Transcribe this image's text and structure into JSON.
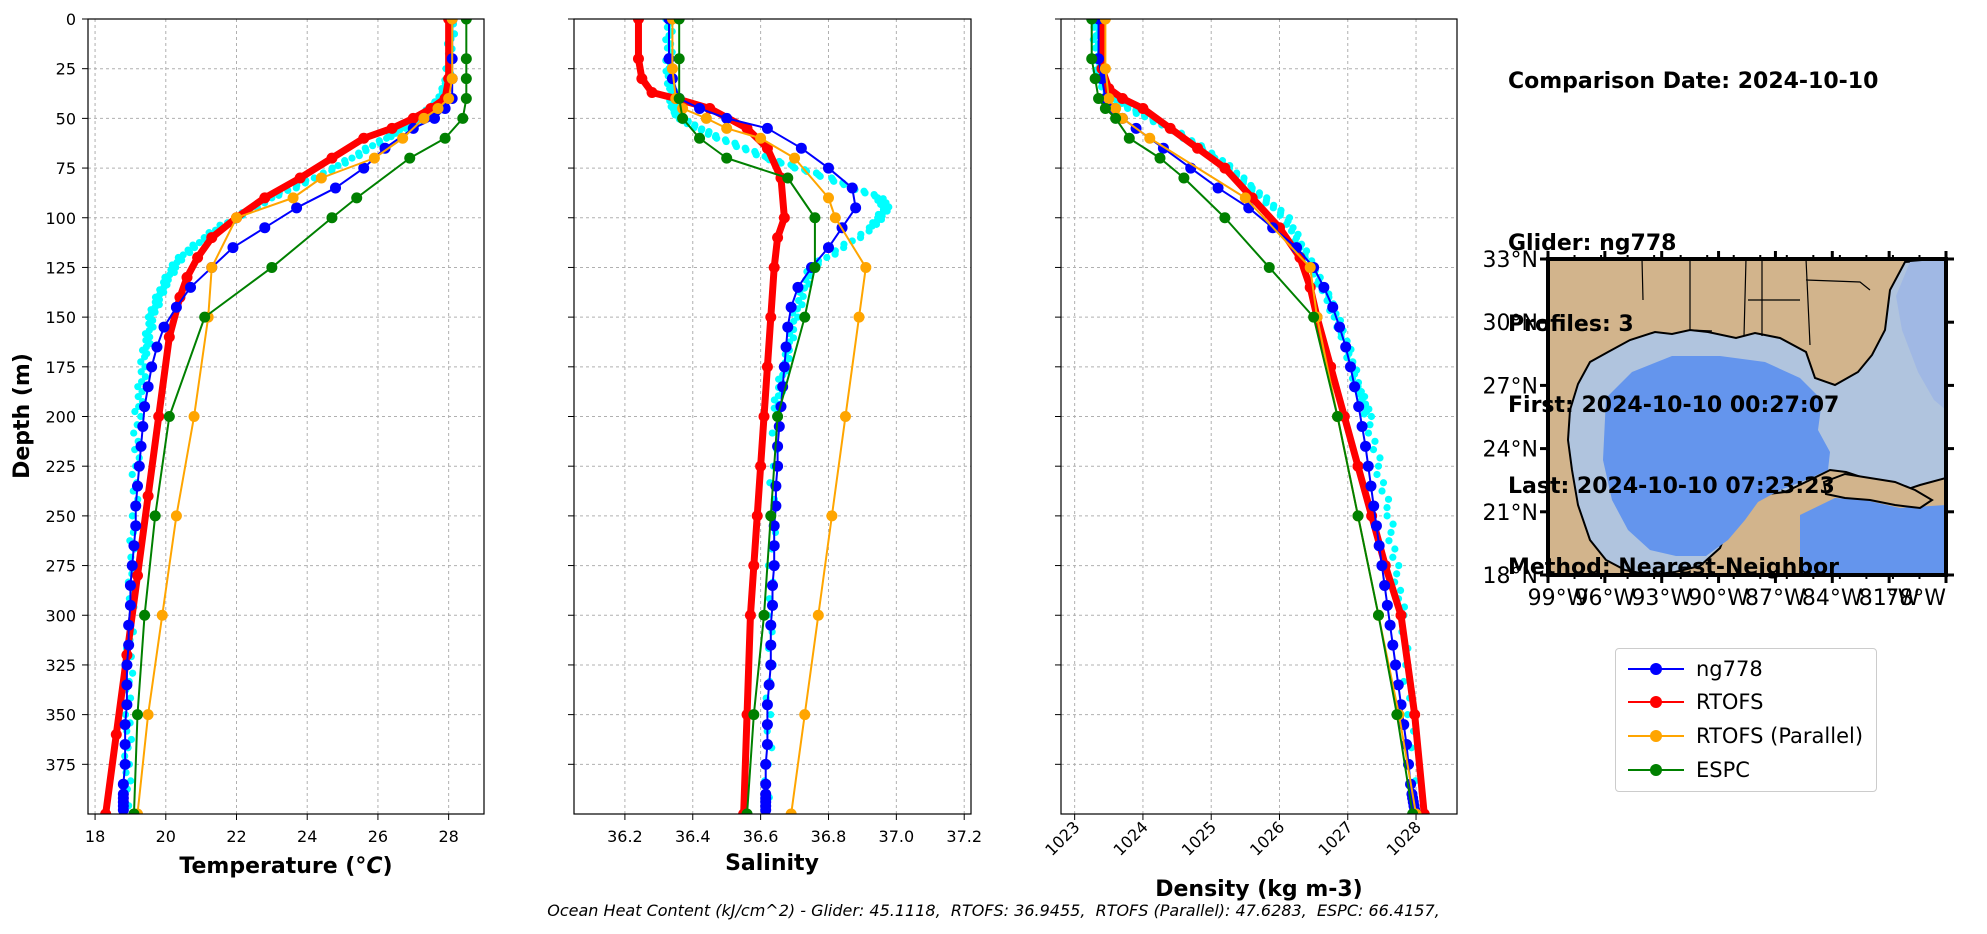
{
  "info": {
    "comparison_date": "Comparison Date: 2024-10-10",
    "glider": "Glider: ng778",
    "profiles": "Profiles: 3",
    "first": "First: 2024-10-10 00:27:07",
    "last": "Last: 2024-10-10 07:23:23",
    "method": "Method: Nearest-Neighbor"
  },
  "footer": "Ocean Heat Content (kJ/cm^2) - Glider: 45.1118,  RTOFS: 36.9455,  RTOFS (Parallel): 47.6283,  ESPC: 66.4157,",
  "legend": [
    {
      "label": "ng778",
      "color": "#0000ff"
    },
    {
      "label": "RTOFS",
      "color": "#ff0000"
    },
    {
      "label": "RTOFS (Parallel)",
      "color": "#ffa500"
    },
    {
      "label": "ESPC",
      "color": "#008000"
    }
  ],
  "colors": {
    "glider_raw": "#00ffff",
    "glider": "#0000ff",
    "rtofs": "#ff0000",
    "rtofs_parallel": "#ffa500",
    "espc": "#008000",
    "land": "#d2b48c",
    "shelf": "#b0c4de",
    "deep": "#6495ed"
  },
  "chart_data": [
    {
      "type": "line",
      "xlabel": "Temperature (°C)",
      "ylabel": "Depth (m)",
      "xlim": [
        17.8,
        29.0
      ],
      "ylim": [
        400,
        0
      ],
      "xticks": [
        "18",
        "20",
        "22",
        "24",
        "26",
        "28"
      ],
      "xtick_values": [
        18,
        20,
        22,
        24,
        26,
        28
      ],
      "yticks": [
        "0",
        "25",
        "50",
        "75",
        "100",
        "125",
        "150",
        "175",
        "200",
        "225",
        "250",
        "275",
        "300",
        "325",
        "350",
        "375"
      ],
      "ytick_values": [
        0,
        25,
        50,
        75,
        100,
        125,
        150,
        175,
        200,
        225,
        250,
        275,
        300,
        325,
        350,
        375
      ],
      "grid": true,
      "glider_raw": {
        "x": [
          28.1,
          28.0,
          27.8,
          27.2,
          26.2,
          24.8,
          23.0,
          21.5,
          20.4,
          19.9,
          19.6,
          19.4,
          19.2,
          19.1,
          19.0,
          18.95,
          18.9
        ],
        "y": [
          0,
          30,
          40,
          50,
          60,
          75,
          90,
          105,
          120,
          135,
          150,
          170,
          200,
          250,
          300,
          350,
          400
        ]
      },
      "series": [
        {
          "name": "ng778",
          "x": [
            28.1,
            28.1,
            28.1,
            28.1,
            27.9,
            27.6,
            27.0,
            26.2,
            25.6,
            24.8,
            23.7,
            22.8,
            21.9,
            21.3,
            20.7,
            20.3,
            19.95,
            19.75,
            19.6,
            19.5,
            19.4,
            19.35,
            19.3,
            19.25,
            19.2,
            19.15,
            19.15,
            19.1,
            19.05,
            19.0,
            19.0,
            18.95,
            18.95,
            18.9,
            18.9,
            18.9,
            18.85,
            18.85,
            18.85,
            18.8,
            18.8,
            18.8,
            18.8,
            18.8,
            18.8
          ],
          "y": [
            0,
            20,
            30,
            40,
            45,
            50,
            55,
            65,
            75,
            85,
            95,
            105,
            115,
            125,
            135,
            145,
            155,
            165,
            175,
            185,
            195,
            205,
            215,
            225,
            235,
            245,
            255,
            265,
            275,
            285,
            295,
            305,
            315,
            325,
            335,
            345,
            355,
            365,
            375,
            385,
            390,
            392,
            394,
            396,
            398
          ]
        },
        {
          "name": "RTOFS",
          "x": [
            28.0,
            28.0,
            27.9,
            27.5,
            27.0,
            26.4,
            25.6,
            24.7,
            23.8,
            22.8,
            22.0,
            21.3,
            20.9,
            20.6,
            20.4,
            20.1,
            19.8,
            19.5,
            19.2,
            18.9,
            18.6,
            18.3
          ],
          "y": [
            0,
            30,
            40,
            45,
            50,
            55,
            60,
            70,
            80,
            90,
            100,
            110,
            120,
            130,
            140,
            160,
            200,
            240,
            280,
            320,
            360,
            400
          ]
        },
        {
          "name": "RTOFS (Parallel)",
          "x": [
            28.1,
            28.1,
            28.0,
            27.7,
            27.3,
            26.7,
            25.9,
            24.4,
            23.6,
            22.0,
            21.3,
            21.2,
            20.8,
            20.3,
            19.9,
            19.5,
            19.2
          ],
          "y": [
            0,
            30,
            40,
            45,
            50,
            60,
            70,
            80,
            90,
            100,
            125,
            150,
            200,
            250,
            300,
            350,
            400
          ]
        },
        {
          "name": "ESPC",
          "x": [
            28.5,
            28.5,
            28.5,
            28.5,
            28.4,
            27.9,
            26.9,
            25.4,
            24.7,
            23.0,
            21.1,
            20.1,
            19.7,
            19.4,
            19.2,
            19.1
          ],
          "y": [
            0,
            20,
            30,
            40,
            50,
            60,
            70,
            90,
            100,
            125,
            150,
            200,
            250,
            300,
            350,
            400
          ]
        }
      ]
    },
    {
      "type": "line",
      "xlabel": "Salinity",
      "xlim": [
        36.05,
        37.22
      ],
      "ylim": [
        400,
        0
      ],
      "xticks": [
        "36.2",
        "36.4",
        "36.6",
        "36.8",
        "37.0",
        "37.2"
      ],
      "xtick_values": [
        36.2,
        36.4,
        36.6,
        36.8,
        37.0,
        37.2
      ],
      "grid": true,
      "glider_raw": {
        "x": [
          36.33,
          36.33,
          36.34,
          36.35,
          36.38,
          36.48,
          36.62,
          36.8,
          36.95,
          36.97,
          36.93,
          36.75,
          36.7,
          36.67,
          36.64,
          36.63,
          36.62
        ],
        "y": [
          0,
          25,
          40,
          47,
          52,
          60,
          70,
          80,
          90,
          95,
          105,
          125,
          150,
          175,
          200,
          300,
          400
        ]
      },
      "series": [
        {
          "name": "ng778",
          "x": [
            36.33,
            36.33,
            36.34,
            36.36,
            36.42,
            36.5,
            36.62,
            36.72,
            36.8,
            36.87,
            36.88,
            36.84,
            36.8,
            36.75,
            36.71,
            36.69,
            36.68,
            36.675,
            36.67,
            36.665,
            36.66,
            36.655,
            36.65,
            36.65,
            36.645,
            36.645,
            36.64,
            36.64,
            36.64,
            36.635,
            36.635,
            36.63,
            36.63,
            36.63,
            36.625,
            36.62,
            36.62,
            36.62,
            36.615,
            36.615,
            36.615,
            36.615,
            36.615,
            36.615,
            36.615
          ],
          "y": [
            0,
            20,
            30,
            40,
            45,
            50,
            55,
            65,
            75,
            85,
            95,
            105,
            115,
            125,
            135,
            145,
            155,
            165,
            175,
            185,
            195,
            205,
            215,
            225,
            235,
            245,
            255,
            265,
            275,
            285,
            295,
            305,
            315,
            325,
            335,
            345,
            355,
            365,
            375,
            385,
            390,
            392,
            394,
            396,
            398
          ]
        },
        {
          "name": "RTOFS",
          "x": [
            36.24,
            36.24,
            36.25,
            36.28,
            36.35,
            36.45,
            36.56,
            36.62,
            36.66,
            36.67,
            36.65,
            36.64,
            36.63,
            36.62,
            36.61,
            36.6,
            36.59,
            36.58,
            36.57,
            36.56,
            36.55
          ],
          "y": [
            0,
            20,
            30,
            37,
            40,
            45,
            55,
            65,
            80,
            100,
            110,
            125,
            150,
            175,
            200,
            225,
            250,
            275,
            300,
            350,
            400
          ]
        },
        {
          "name": "RTOFS (Parallel)",
          "x": [
            36.34,
            36.34,
            36.35,
            36.37,
            36.44,
            36.5,
            36.6,
            36.7,
            36.8,
            36.82,
            36.91,
            36.89,
            36.85,
            36.81,
            36.77,
            36.73,
            36.69
          ],
          "y": [
            0,
            25,
            40,
            45,
            50,
            55,
            60,
            70,
            90,
            100,
            125,
            150,
            200,
            250,
            300,
            350,
            400
          ]
        },
        {
          "name": "ESPC",
          "x": [
            36.36,
            36.36,
            36.36,
            36.37,
            36.42,
            36.5,
            36.68,
            36.76,
            36.76,
            36.73,
            36.65,
            36.63,
            36.61,
            36.58,
            36.56
          ],
          "y": [
            0,
            20,
            40,
            50,
            60,
            70,
            80,
            100,
            125,
            150,
            200,
            250,
            300,
            350,
            400
          ]
        }
      ]
    },
    {
      "type": "line",
      "xlabel": "Density (kg m-3)",
      "xlim": [
        1022.8,
        1028.6
      ],
      "ylim": [
        400,
        0
      ],
      "xticks": [
        "1023",
        "1024",
        "1025",
        "1026",
        "1027",
        "1028"
      ],
      "xtick_values": [
        1023,
        1024,
        1025,
        1026,
        1027,
        1028
      ],
      "grid": true,
      "glider_raw": {
        "x": [
          1023.3,
          1023.35,
          1023.45,
          1023.8,
          1024.4,
          1025.1,
          1025.6,
          1026.1,
          1026.4,
          1026.7,
          1026.95,
          1027.15,
          1027.3,
          1027.6,
          1027.8,
          1028.0
        ],
        "y": [
          0,
          25,
          35,
          45,
          55,
          70,
          85,
          100,
          120,
          140,
          160,
          185,
          200,
          250,
          300,
          400
        ]
      },
      "series": [
        {
          "name": "ng778",
          "x": [
            1023.35,
            1023.35,
            1023.4,
            1023.45,
            1023.55,
            1023.7,
            1023.9,
            1024.3,
            1024.7,
            1025.1,
            1025.55,
            1025.9,
            1026.25,
            1026.5,
            1026.65,
            1026.78,
            1026.88,
            1026.97,
            1027.04,
            1027.1,
            1027.16,
            1027.21,
            1027.26,
            1027.3,
            1027.34,
            1027.38,
            1027.42,
            1027.46,
            1027.5,
            1027.54,
            1027.58,
            1027.62,
            1027.66,
            1027.7,
            1027.74,
            1027.78,
            1027.82,
            1027.86,
            1027.89,
            1027.92,
            1027.94,
            1027.95,
            1027.96,
            1027.97,
            1027.98
          ],
          "y": [
            0,
            20,
            30,
            40,
            45,
            50,
            55,
            65,
            75,
            85,
            95,
            105,
            115,
            125,
            135,
            145,
            155,
            165,
            175,
            185,
            195,
            205,
            215,
            225,
            235,
            245,
            255,
            265,
            275,
            285,
            295,
            305,
            315,
            325,
            335,
            345,
            355,
            365,
            375,
            385,
            390,
            392,
            394,
            396,
            398
          ]
        },
        {
          "name": "RTOFS",
          "x": [
            1023.4,
            1023.4,
            1023.5,
            1023.7,
            1024.0,
            1024.4,
            1024.8,
            1025.2,
            1025.6,
            1026.0,
            1026.3,
            1026.45,
            1026.55,
            1026.75,
            1026.95,
            1027.15,
            1027.35,
            1027.55,
            1027.78,
            1027.98,
            1028.12
          ],
          "y": [
            0,
            25,
            35,
            40,
            45,
            55,
            65,
            75,
            90,
            105,
            120,
            135,
            150,
            175,
            200,
            225,
            250,
            275,
            300,
            350,
            400
          ]
        },
        {
          "name": "RTOFS (Parallel)",
          "x": [
            1023.45,
            1023.45,
            1023.5,
            1023.6,
            1023.7,
            1024.1,
            1025.5,
            1026.45,
            1026.55,
            1026.85,
            1027.15,
            1027.45,
            1027.75,
            1028.0
          ],
          "y": [
            0,
            25,
            40,
            45,
            50,
            60,
            90,
            125,
            150,
            200,
            250,
            300,
            350,
            400
          ]
        },
        {
          "name": "ESPC",
          "x": [
            1023.25,
            1023.25,
            1023.3,
            1023.35,
            1023.45,
            1023.6,
            1023.8,
            1024.25,
            1024.6,
            1025.2,
            1025.85,
            1026.5,
            1026.85,
            1027.15,
            1027.45,
            1027.72,
            1027.95
          ],
          "y": [
            0,
            20,
            30,
            40,
            45,
            50,
            60,
            70,
            80,
            100,
            125,
            150,
            200,
            250,
            300,
            350,
            400
          ]
        }
      ]
    },
    {
      "type": "map",
      "lat_ticks": [
        "33°N",
        "30°N",
        "27°N",
        "24°N",
        "21°N",
        "18°N"
      ],
      "lon_ticks": [
        "99°W",
        "96°W",
        "93°W",
        "90°W",
        "87°W",
        "84°W",
        "81°W",
        "78°W"
      ]
    }
  ]
}
